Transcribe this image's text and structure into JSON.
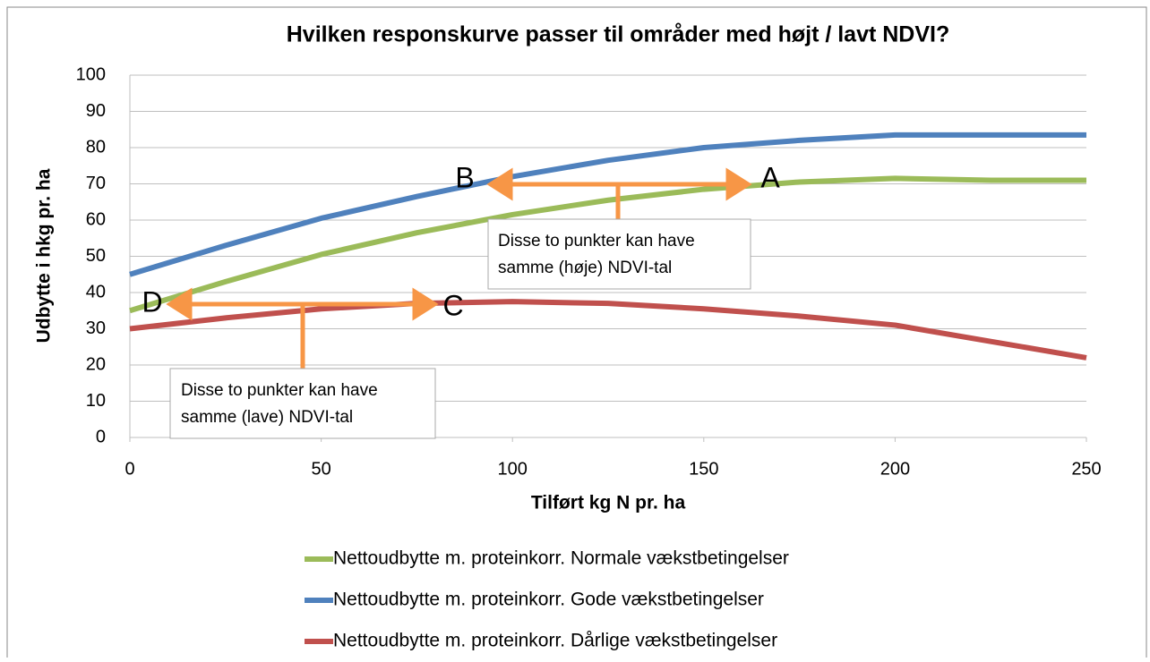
{
  "chart_data": {
    "type": "line",
    "title": "Hvilken responskurve passer til områder med højt / lavt NDVI?",
    "xlabel": "Tilført kg N pr. ha",
    "ylabel": "Udbytte i hkg pr. ha",
    "x": [
      0,
      25,
      50,
      75,
      100,
      125,
      150,
      175,
      200,
      225,
      250
    ],
    "series": [
      {
        "name": "Nettoudbytte m. proteinkorr. Normale vækstbetingelser",
        "color": "#9bbb59",
        "values": [
          35,
          43,
          50.5,
          56.5,
          61.5,
          65.5,
          68.5,
          70.5,
          71.5,
          71,
          71
        ]
      },
      {
        "name": "Nettoudbytte m. proteinkorr. Gode vækstbetingelser",
        "color": "#4f81bd",
        "values": [
          45,
          53,
          60.5,
          66.5,
          72,
          76.5,
          80,
          82,
          83.5,
          83.5,
          83.5
        ]
      },
      {
        "name": "Nettoudbytte m. proteinkorr. Dårlige vækstbetingelser",
        "color": "#c0504d",
        "values": [
          30,
          33,
          35.5,
          37,
          37.5,
          37,
          35.5,
          33.5,
          31,
          26.5,
          22
        ]
      }
    ],
    "xlim": [
      0,
      250
    ],
    "xticks": [
      0,
      50,
      100,
      150,
      200,
      250
    ],
    "ylim": [
      0,
      100
    ],
    "yticks": [
      0,
      10,
      20,
      30,
      40,
      50,
      60,
      70,
      80,
      90,
      100
    ],
    "grid": true,
    "annotations": [
      "A",
      "B",
      "C",
      "D"
    ],
    "notes": [
      [
        "Disse to punkter kan have",
        "samme (høje) NDVI-tal"
      ],
      [
        "Disse to punkter kan have",
        "samme (lave) NDVI-tal"
      ]
    ]
  }
}
